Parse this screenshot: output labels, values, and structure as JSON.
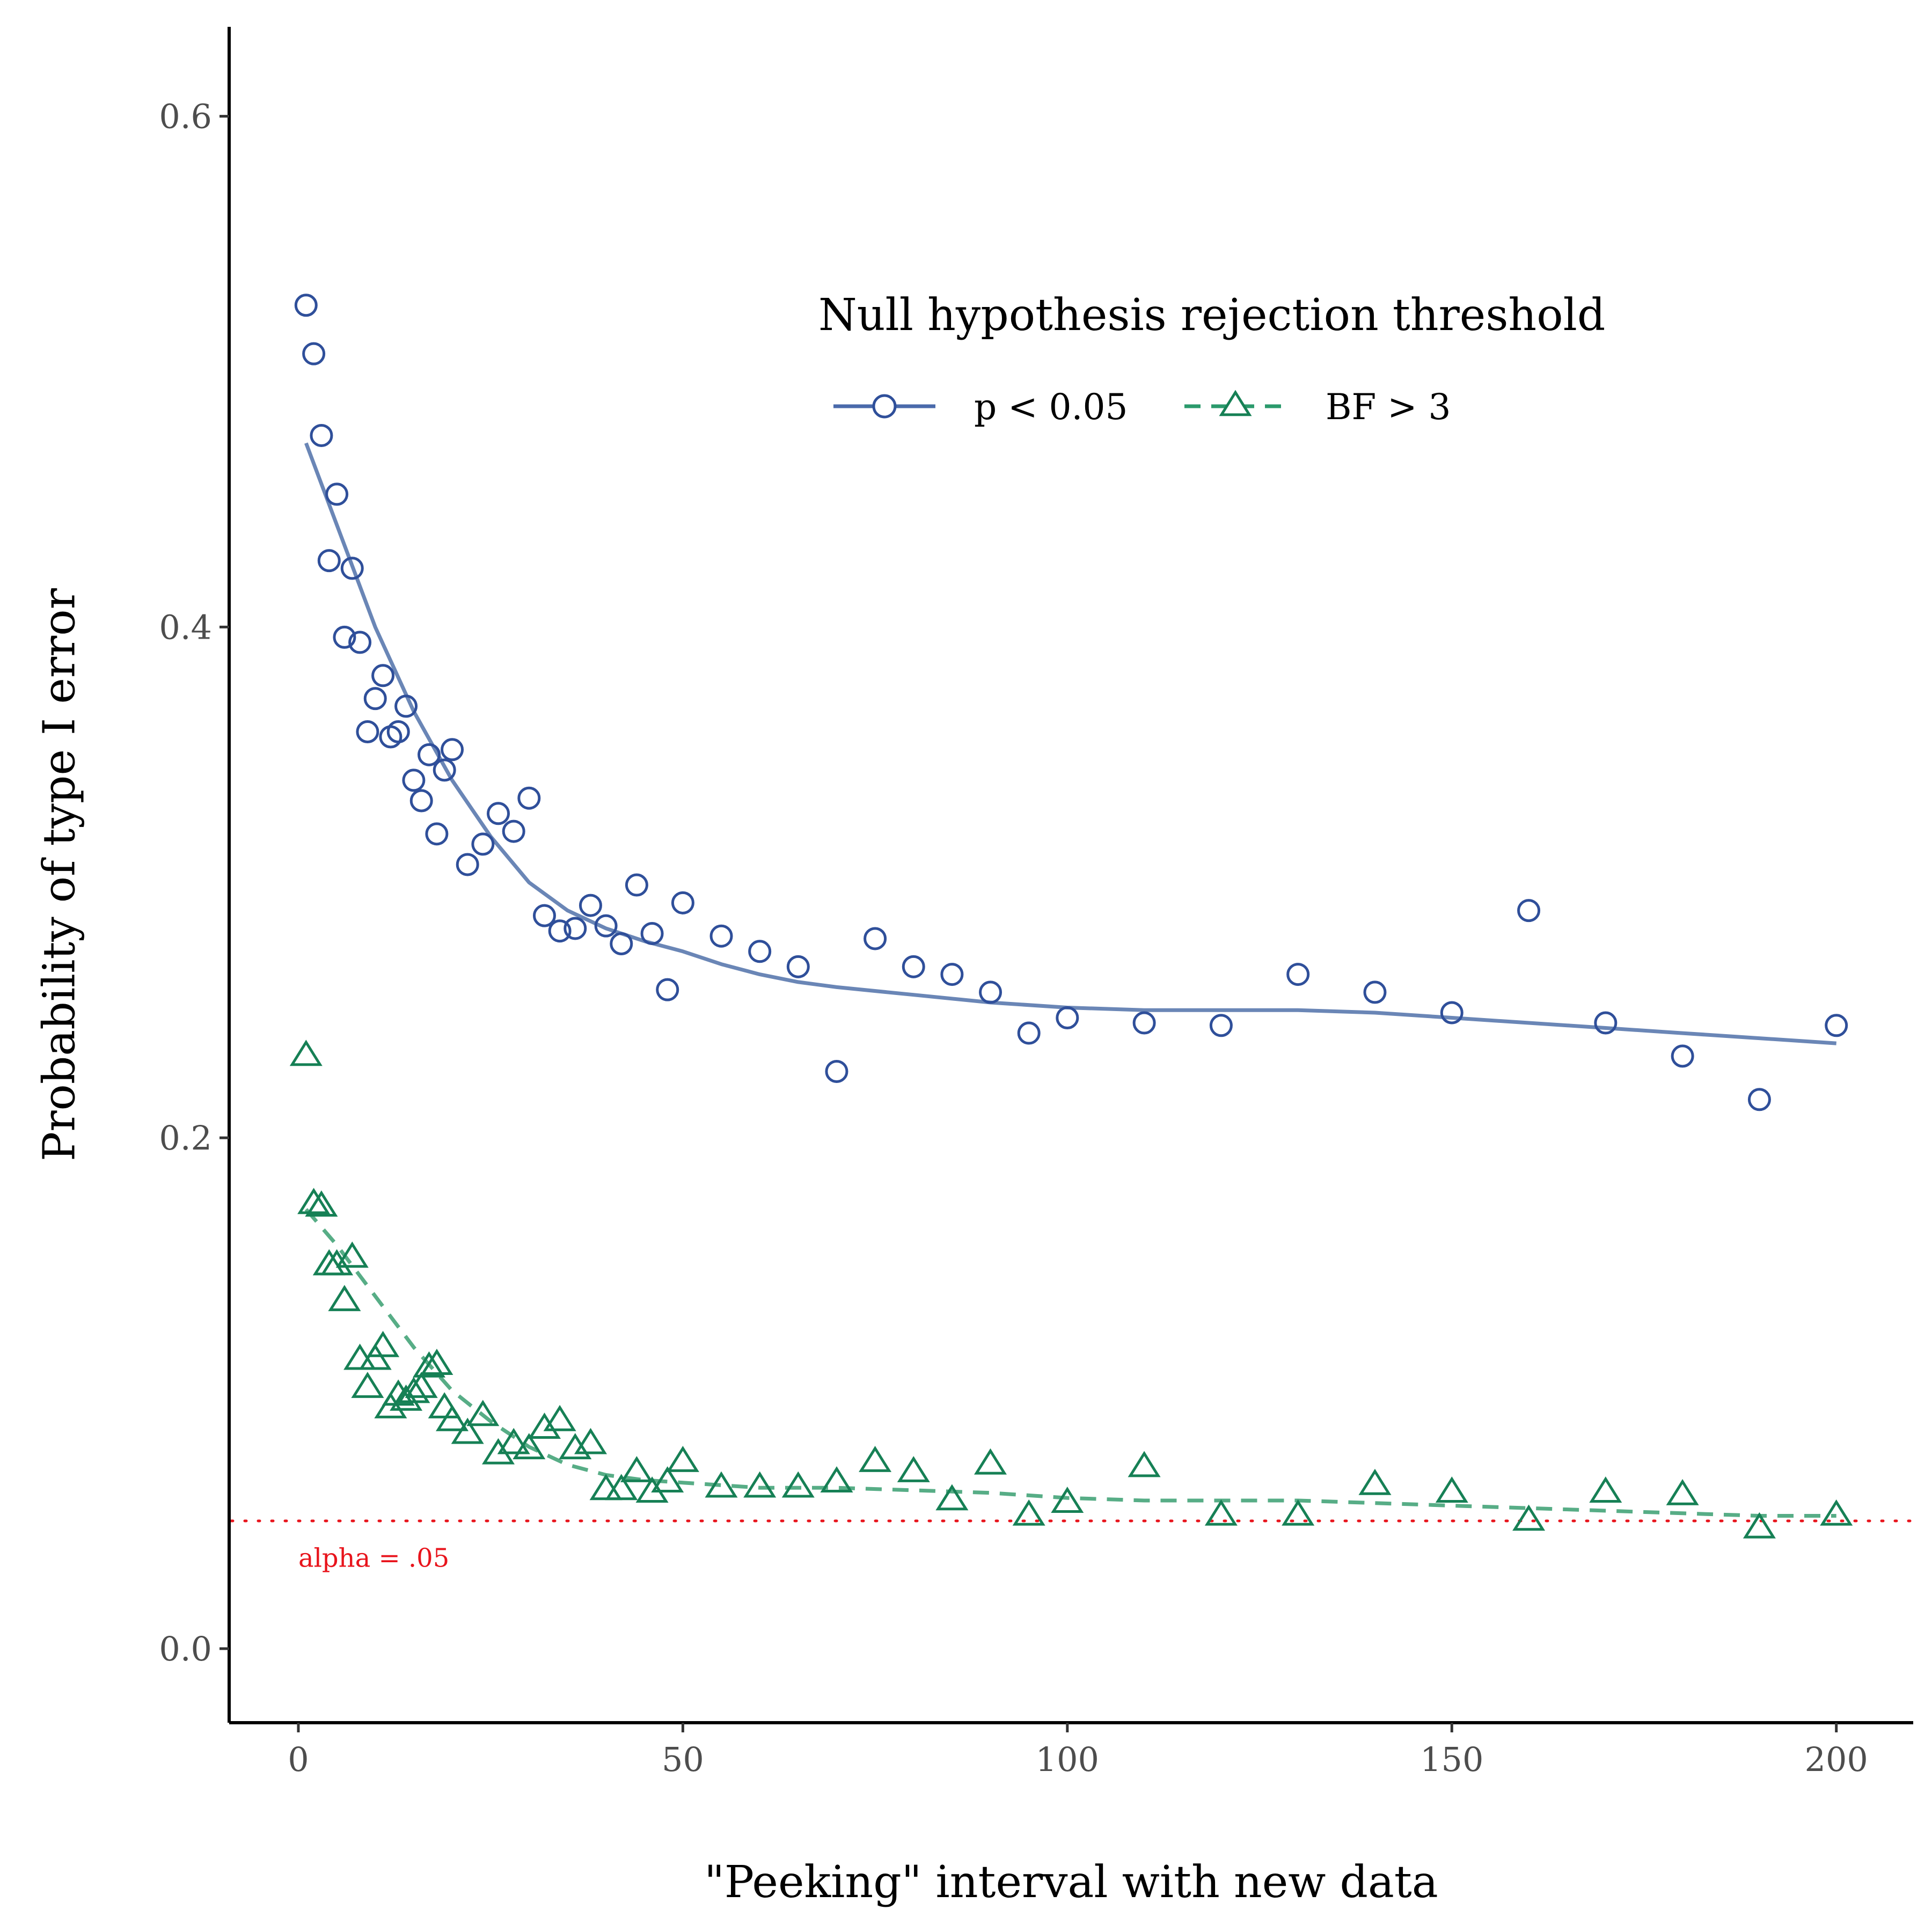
{
  "chart_data": {
    "type": "scatter",
    "title": "",
    "xlabel": "\"Peeking\" interval with new data",
    "ylabel": "Probability of type I error",
    "xlim": [
      -9,
      210
    ],
    "ylim": [
      -0.029,
      0.635
    ],
    "x_ticks": [
      0,
      50,
      100,
      150,
      200
    ],
    "x_tick_labels": [
      "0",
      "50",
      "100",
      "150",
      "200"
    ],
    "y_ticks": [
      0.0,
      0.2,
      0.4,
      0.6
    ],
    "y_tick_labels": [
      "0.0",
      "0.2",
      "0.4",
      "0.6"
    ],
    "grid": false,
    "legend": {
      "title": "Null hypothesis rejection threshold",
      "placement": "top-right",
      "orientation": "horizontal"
    },
    "reference_line": {
      "y": 0.05,
      "label": "alpha = .05",
      "color": "#e8141c",
      "style": "dotted"
    },
    "series": [
      {
        "name": "p < 0.05",
        "marker": "circle",
        "color": "#2f4f9a",
        "line_color": "#6a86b6",
        "line_style": "solid",
        "points": [
          [
            1,
            0.526
          ],
          [
            2,
            0.507
          ],
          [
            3,
            0.475
          ],
          [
            5,
            0.452
          ],
          [
            4,
            0.426
          ],
          [
            7,
            0.423
          ],
          [
            6,
            0.396
          ],
          [
            8,
            0.394
          ],
          [
            11,
            0.381
          ],
          [
            10,
            0.372
          ],
          [
            14,
            0.369
          ],
          [
            9,
            0.359
          ],
          [
            13,
            0.359
          ],
          [
            12,
            0.357
          ],
          [
            20,
            0.352
          ],
          [
            17,
            0.35
          ],
          [
            19,
            0.344
          ],
          [
            15,
            0.34
          ],
          [
            30,
            0.333
          ],
          [
            16,
            0.332
          ],
          [
            26,
            0.327
          ],
          [
            18,
            0.319
          ],
          [
            28,
            0.32
          ],
          [
            24,
            0.315
          ],
          [
            22,
            0.307
          ],
          [
            44,
            0.299
          ],
          [
            50,
            0.292
          ],
          [
            38,
            0.291
          ],
          [
            32,
            0.287
          ],
          [
            40,
            0.283
          ],
          [
            36,
            0.282
          ],
          [
            34,
            0.281
          ],
          [
            46,
            0.28
          ],
          [
            55,
            0.279
          ],
          [
            75,
            0.278
          ],
          [
            42,
            0.276
          ],
          [
            60,
            0.273
          ],
          [
            65,
            0.267
          ],
          [
            80,
            0.267
          ],
          [
            85,
            0.264
          ],
          [
            130,
            0.264
          ],
          [
            48,
            0.258
          ],
          [
            90,
            0.257
          ],
          [
            140,
            0.257
          ],
          [
            160,
            0.289
          ],
          [
            150,
            0.249
          ],
          [
            100,
            0.247
          ],
          [
            110,
            0.245
          ],
          [
            170,
            0.245
          ],
          [
            120,
            0.244
          ],
          [
            200,
            0.244
          ],
          [
            95,
            0.241
          ],
          [
            180,
            0.232
          ],
          [
            70,
            0.226
          ],
          [
            190,
            0.215
          ]
        ],
        "smooth": [
          [
            1,
            0.472
          ],
          [
            5,
            0.44
          ],
          [
            10,
            0.4
          ],
          [
            15,
            0.367
          ],
          [
            20,
            0.34
          ],
          [
            25,
            0.318
          ],
          [
            30,
            0.3
          ],
          [
            35,
            0.289
          ],
          [
            40,
            0.282
          ],
          [
            45,
            0.277
          ],
          [
            50,
            0.273
          ],
          [
            55,
            0.268
          ],
          [
            60,
            0.264
          ],
          [
            65,
            0.261
          ],
          [
            70,
            0.259
          ],
          [
            80,
            0.256
          ],
          [
            90,
            0.253
          ],
          [
            100,
            0.251
          ],
          [
            110,
            0.25
          ],
          [
            120,
            0.25
          ],
          [
            130,
            0.25
          ],
          [
            140,
            0.249
          ],
          [
            150,
            0.247
          ],
          [
            160,
            0.245
          ],
          [
            170,
            0.243
          ],
          [
            180,
            0.241
          ],
          [
            190,
            0.239
          ],
          [
            200,
            0.237
          ]
        ]
      },
      {
        "name": "BF > 3",
        "marker": "triangle",
        "color": "#168055",
        "line_color": "#57ad86",
        "line_style": "dashed",
        "points": [
          [
            1,
            0.232
          ],
          [
            2,
            0.174
          ],
          [
            3,
            0.173
          ],
          [
            7,
            0.153
          ],
          [
            4,
            0.15
          ],
          [
            5,
            0.15
          ],
          [
            6,
            0.136
          ],
          [
            11,
            0.118
          ],
          [
            8,
            0.113
          ],
          [
            10,
            0.113
          ],
          [
            17,
            0.11
          ],
          [
            18,
            0.111
          ],
          [
            9,
            0.102
          ],
          [
            16,
            0.102
          ],
          [
            13,
            0.099
          ],
          [
            15,
            0.1
          ],
          [
            14,
            0.097
          ],
          [
            12,
            0.094
          ],
          [
            19,
            0.094
          ],
          [
            24,
            0.091
          ],
          [
            34,
            0.089
          ],
          [
            20,
            0.089
          ],
          [
            32,
            0.086
          ],
          [
            22,
            0.084
          ],
          [
            38,
            0.08
          ],
          [
            36,
            0.078
          ],
          [
            30,
            0.078
          ],
          [
            28,
            0.08
          ],
          [
            26,
            0.076
          ],
          [
            50,
            0.073
          ],
          [
            75,
            0.073
          ],
          [
            90,
            0.072
          ],
          [
            110,
            0.071
          ],
          [
            44,
            0.069
          ],
          [
            80,
            0.069
          ],
          [
            70,
            0.065
          ],
          [
            140,
            0.064
          ],
          [
            48,
            0.065
          ],
          [
            55,
            0.063
          ],
          [
            60,
            0.063
          ],
          [
            65,
            0.063
          ],
          [
            40,
            0.062
          ],
          [
            42,
            0.062
          ],
          [
            46,
            0.061
          ],
          [
            150,
            0.061
          ],
          [
            170,
            0.061
          ],
          [
            180,
            0.06
          ],
          [
            85,
            0.058
          ],
          [
            100,
            0.057
          ],
          [
            95,
            0.052
          ],
          [
            120,
            0.052
          ],
          [
            130,
            0.052
          ],
          [
            200,
            0.052
          ],
          [
            160,
            0.05
          ],
          [
            190,
            0.047
          ]
        ],
        "smooth": [
          [
            1,
            0.172
          ],
          [
            5,
            0.158
          ],
          [
            10,
            0.138
          ],
          [
            15,
            0.118
          ],
          [
            20,
            0.101
          ],
          [
            25,
            0.089
          ],
          [
            30,
            0.079
          ],
          [
            35,
            0.072
          ],
          [
            40,
            0.068
          ],
          [
            45,
            0.066
          ],
          [
            50,
            0.065
          ],
          [
            60,
            0.063
          ],
          [
            70,
            0.063
          ],
          [
            80,
            0.062
          ],
          [
            90,
            0.061
          ],
          [
            100,
            0.059
          ],
          [
            110,
            0.058
          ],
          [
            120,
            0.058
          ],
          [
            130,
            0.058
          ],
          [
            140,
            0.057
          ],
          [
            150,
            0.056
          ],
          [
            160,
            0.055
          ],
          [
            170,
            0.054
          ],
          [
            180,
            0.053
          ],
          [
            190,
            0.052
          ],
          [
            200,
            0.052
          ]
        ]
      }
    ]
  }
}
